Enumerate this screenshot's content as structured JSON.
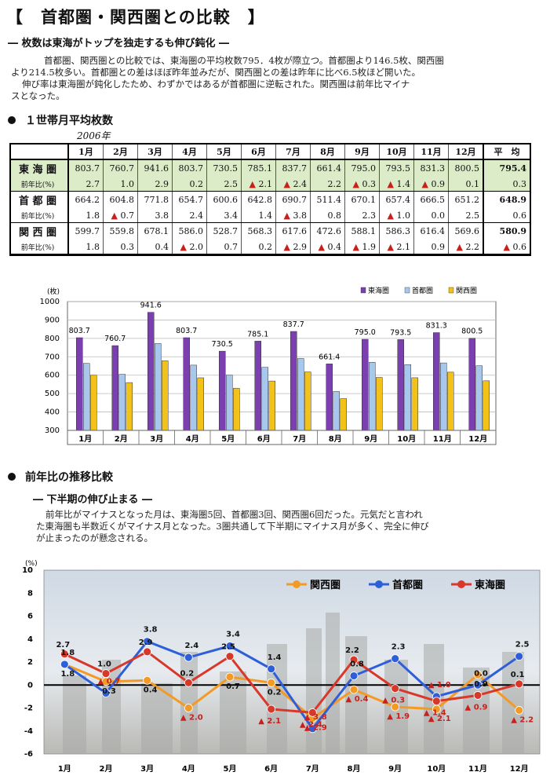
{
  "title": "【　首都圏・関西圏との比較　】",
  "subtitle1": "― 枚数は東海がトップを独走するも伸び鈍化 ―",
  "para1_lines": [
    "首都圏、関西圏との比較では、東海圏の平均枚数795．4枚が際立つ。首都圏より146.5枚、関西圏",
    "より214.5枚多い。首都圏との差はほぼ昨年並みだが、関西圏との差は昨年に比べ6.5枚ほど開いた。",
    "伸び率は東海圏が鈍化したため、わずかではあるが首都圏に逆転された。関西圏は前年比マイナ",
    "スとなった。"
  ],
  "section1": "１世帯月平均枚数",
  "year_label": "2006年",
  "table": {
    "months": [
      "1月",
      "2月",
      "3月",
      "4月",
      "5月",
      "6月",
      "7月",
      "8月",
      "9月",
      "10月",
      "11月",
      "12月"
    ],
    "avg_label": "平　均",
    "yoy_label": "前年比(%)",
    "regions": [
      {
        "name": "東 海 圏",
        "values": [
          "803.7",
          "760.7",
          "941.6",
          "803.7",
          "730.5",
          "785.1",
          "837.7",
          "661.4",
          "795.0",
          "793.5",
          "831.3",
          "800.5"
        ],
        "avg": "795.4",
        "yoy": [
          "2.7",
          "1.0",
          "2.9",
          "0.2",
          "2.5",
          "▲ 2.1",
          "▲ 2.4",
          "2.2",
          "▲ 0.3",
          "▲ 1.4",
          "▲ 0.9",
          "0.1"
        ],
        "yoy_avg": "0.3"
      },
      {
        "name": "首 都 圏",
        "values": [
          "664.2",
          "604.8",
          "771.8",
          "654.7",
          "600.6",
          "642.8",
          "690.7",
          "511.4",
          "670.1",
          "657.4",
          "666.5",
          "651.2"
        ],
        "avg": "648.9",
        "yoy": [
          "1.8",
          "▲ 0.7",
          "3.8",
          "2.4",
          "3.4",
          "1.4",
          "▲ 3.8",
          "0.8",
          "2.3",
          "▲ 1.0",
          "0.0",
          "2.5"
        ],
        "yoy_avg": "0.6"
      },
      {
        "name": "関 西 圏",
        "values": [
          "599.7",
          "559.8",
          "678.1",
          "586.0",
          "528.7",
          "568.3",
          "617.6",
          "472.6",
          "588.1",
          "586.3",
          "616.4",
          "569.6"
        ],
        "avg": "580.9",
        "yoy": [
          "1.8",
          "0.3",
          "0.4",
          "▲ 2.0",
          "0.7",
          "0.2",
          "▲ 2.9",
          "▲ 0.4",
          "▲ 1.9",
          "▲ 2.1",
          "0.9",
          "▲ 2.2"
        ],
        "yoy_avg": "▲ 0.6"
      }
    ]
  },
  "section2": "前年比の推移比較",
  "subtitle2": "― 下半期の伸び止まる ―",
  "para2_lines": [
    "前年比がマイナスとなった月は、東海圏5回、首都圏3回、関西圏6回だった。元気だと言われ",
    "た東海圏も半数近くがマイナス月となった。3圏共通して下半期にマイナス月が多く、完全に伸び",
    "が止まったのが懸念される。"
  ],
  "colors": {
    "tokai": "#7b3fb0",
    "shuto": "#a7c8ec",
    "kansai": "#f2c21a",
    "line_tokai": "#d8382a",
    "line_shuto": "#2f5fd8",
    "line_kansai": "#f39a24"
  },
  "chart_data": [
    {
      "type": "bar",
      "title": "",
      "unit_label": "(枚)",
      "categories": [
        "1月",
        "2月",
        "3月",
        "4月",
        "5月",
        "6月",
        "7月",
        "8月",
        "9月",
        "10月",
        "11月",
        "12月"
      ],
      "series": [
        {
          "name": "東海圏",
          "values": [
            803.7,
            760.7,
            941.6,
            803.7,
            730.5,
            785.1,
            837.7,
            661.4,
            795.0,
            793.5,
            831.3,
            800.5
          ]
        },
        {
          "name": "首都圏",
          "values": [
            664.2,
            604.8,
            771.8,
            654.7,
            600.6,
            642.8,
            690.7,
            511.4,
            670.1,
            657.4,
            666.5,
            651.2
          ]
        },
        {
          "name": "関西圏",
          "values": [
            599.7,
            559.8,
            678.1,
            586.0,
            528.7,
            568.3,
            617.6,
            472.6,
            588.1,
            586.3,
            616.4,
            569.6
          ]
        }
      ],
      "data_labels": [
        "803.7",
        "760.7",
        "941.6",
        "803.7",
        "730.5",
        "785.1",
        "837.7",
        "661.4",
        "795.0",
        "793.5",
        "831.3",
        "800.5"
      ],
      "ylim": [
        300,
        1000
      ],
      "yticks": [
        "1000",
        "900",
        "800",
        "700",
        "600",
        "500",
        "400",
        "300"
      ],
      "grid": true,
      "legend": "top-right"
    },
    {
      "type": "line",
      "title": "",
      "unit_label": "(%)",
      "categories": [
        "1月",
        "2月",
        "3月",
        "4月",
        "5月",
        "6月",
        "7月",
        "8月",
        "9月",
        "10月",
        "11月",
        "12月"
      ],
      "series": [
        {
          "name": "関西圏",
          "values": [
            1.8,
            0.3,
            0.4,
            -2.0,
            0.7,
            0.2,
            -2.9,
            -0.4,
            -1.9,
            -2.1,
            0.9,
            -2.2
          ],
          "labels": [
            "1.8",
            "0.3",
            "0.4",
            "▲ 2.0",
            "0.7",
            "0.2",
            "▲ 2.9",
            "▲ 0.4",
            "▲ 1.9",
            "▲ 2.1",
            "0.9",
            "▲ 2.2"
          ]
        },
        {
          "name": "首都圏",
          "values": [
            1.8,
            -0.7,
            3.8,
            2.4,
            3.4,
            1.4,
            -3.8,
            0.8,
            2.3,
            -1.0,
            0.0,
            2.5
          ],
          "labels": [
            "1.8",
            "▲ 0.7",
            "3.8",
            "2.4",
            "3.4",
            "1.4",
            "▲ 3.8",
            "0.8",
            "2.3",
            "▲ 1.0",
            "0.0",
            "2.5"
          ]
        },
        {
          "name": "東海圏",
          "values": [
            2.7,
            1.0,
            2.9,
            0.2,
            2.5,
            -2.1,
            -2.4,
            2.2,
            -0.3,
            -1.4,
            -0.9,
            0.1
          ],
          "labels": [
            "2.7",
            "1.0",
            "2.9",
            "0.2",
            "2.5",
            "▲ 2.1",
            "▲ 2.4",
            "2.2",
            "▲ 0.3",
            "▲ 1.4",
            "▲ 0.9",
            "0.1"
          ]
        }
      ],
      "ylim": [
        -6,
        10
      ],
      "yticks": [
        "10",
        "8",
        "6",
        "4",
        "2",
        "0",
        "-2",
        "-4",
        "-6"
      ],
      "grid": false,
      "legend": "top-right"
    }
  ]
}
